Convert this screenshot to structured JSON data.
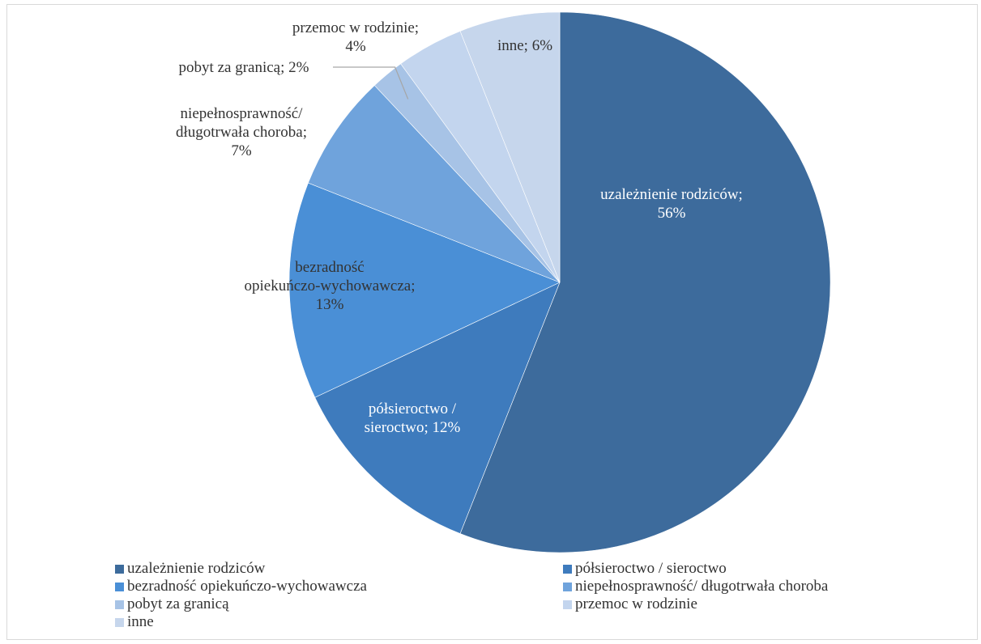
{
  "chart_data": {
    "type": "pie",
    "title": "",
    "label_format": "category; percent",
    "legend_position": "bottom",
    "slices": [
      {
        "label": "uzależnienie rodziców",
        "display_label": "uzależnienie rodziców; 56%",
        "value": 56,
        "color": "#3d6b9c"
      },
      {
        "label": "półsieroctwo / sieroctwo",
        "display_label": "półsieroctwo / sieroctwo; 12%",
        "value": 12,
        "color": "#3e7bbd"
      },
      {
        "label": "bezradność opiekuńczo-wychowawcza",
        "display_label": "bezradność opiekuńczo-wychowawcza; 13%",
        "value": 13,
        "color": "#4a8fd6"
      },
      {
        "label": "niepełnosprawność/ długotrwała choroba",
        "display_label": "niepełnosprawność/ długotrwała choroba; 7%",
        "value": 7,
        "color": "#6fa3dc"
      },
      {
        "label": "pobyt za granicą",
        "display_label": "pobyt za granicą; 2%",
        "value": 2,
        "color": "#a7c3e6"
      },
      {
        "label": "przemoc w rodzinie",
        "display_label": "przemoc w rodzinie; 4%",
        "value": 4,
        "color": "#c3d5ee"
      },
      {
        "label": "inne",
        "display_label": "inne; 6%",
        "value": 6,
        "color": "#c6d6ec"
      }
    ]
  }
}
